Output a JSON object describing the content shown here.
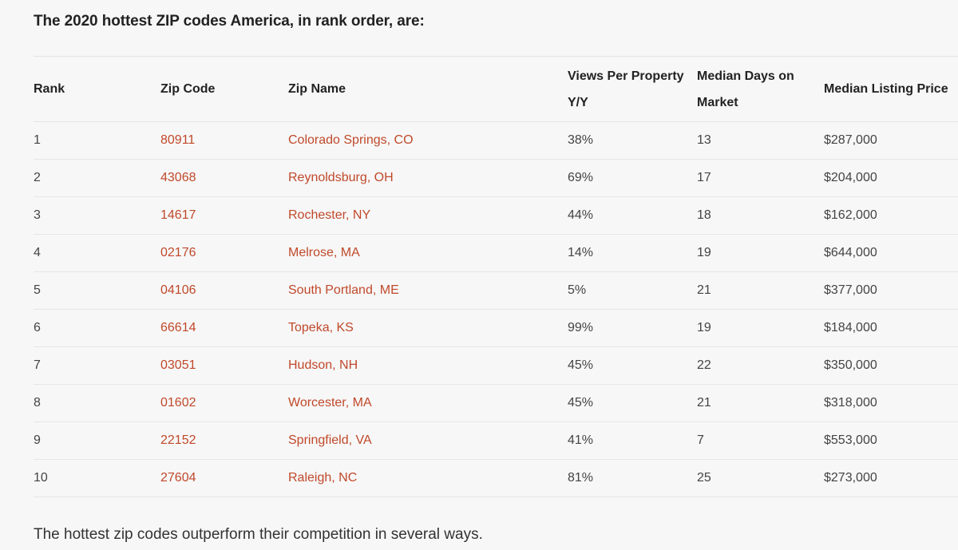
{
  "intro": "The 2020 hottest ZIP codes America, in rank order, are:",
  "table": {
    "headers": {
      "rank": "Rank",
      "zip_code": "Zip Code",
      "zip_name": "Zip Name",
      "views": "Views Per Property Y/Y",
      "days": "Median Days on Market",
      "price": "Median Listing Price"
    },
    "rows": [
      {
        "rank": "1",
        "zip": "80911",
        "name": "Colorado Springs, CO",
        "views": "38%",
        "days": "13",
        "price": "$287,000"
      },
      {
        "rank": "2",
        "zip": "43068",
        "name": "Reynoldsburg, OH",
        "views": "69%",
        "days": "17",
        "price": "$204,000"
      },
      {
        "rank": "3",
        "zip": "14617",
        "name": "Rochester, NY",
        "views": "44%",
        "days": "18",
        "price": "$162,000"
      },
      {
        "rank": "4",
        "zip": "02176",
        "name": "Melrose, MA",
        "views": "14%",
        "days": "19",
        "price": "$644,000"
      },
      {
        "rank": "5",
        "zip": "04106",
        "name": "South Portland, ME",
        "views": "5%",
        "days": "21",
        "price": "$377,000"
      },
      {
        "rank": "6",
        "zip": "66614",
        "name": "Topeka, KS",
        "views": "99%",
        "days": "19",
        "price": "$184,000"
      },
      {
        "rank": "7",
        "zip": "03051",
        "name": "Hudson, NH",
        "views": "45%",
        "days": "22",
        "price": "$350,000"
      },
      {
        "rank": "8",
        "zip": "01602",
        "name": "Worcester, MA",
        "views": "45%",
        "days": "21",
        "price": "$318,000"
      },
      {
        "rank": "9",
        "zip": "22152",
        "name": "Springfield, VA",
        "views": "41%",
        "days": "7",
        "price": "$553,000"
      },
      {
        "rank": "10",
        "zip": "27604",
        "name": "Raleigh, NC",
        "views": "81%",
        "days": "25",
        "price": "$273,000"
      }
    ]
  },
  "outro": "The hottest zip codes outperform their competition in several ways.",
  "colors": {
    "link": "#c0492b",
    "text": "#444444",
    "heading": "#222222",
    "background": "#f7f7f7"
  }
}
